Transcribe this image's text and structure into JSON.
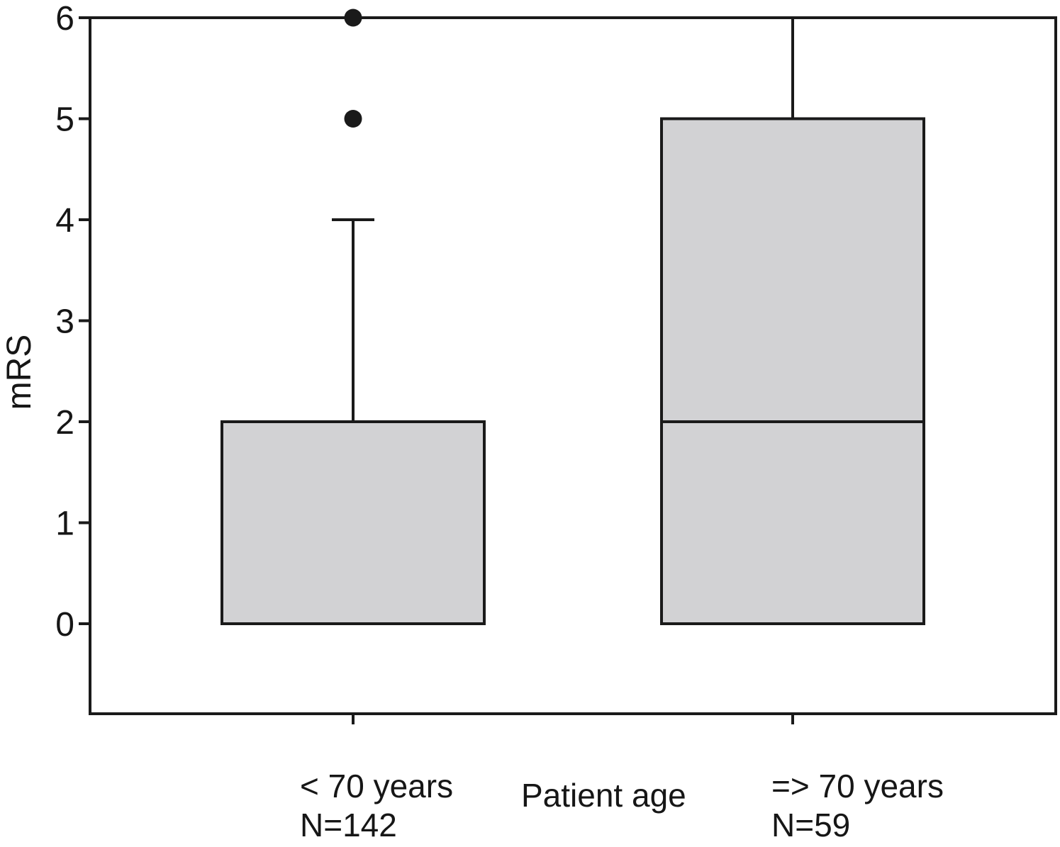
{
  "chart_data": {
    "type": "boxplot",
    "title": "",
    "ylabel": "mRS",
    "xlabel": "Patient age",
    "ylim": [
      0,
      6
    ],
    "yticks": [
      0,
      1,
      2,
      3,
      4,
      5,
      6
    ],
    "grid": false,
    "box_orientation": "vertical",
    "categories": [
      {
        "label": "< 70 years",
        "n_label": "N=142",
        "q1": 0,
        "q3": 2,
        "median": null,
        "median_visible": false,
        "whisker_low": 0,
        "whisker_high": 4,
        "whisker_high_cap": true,
        "outliers": [
          5,
          6
        ]
      },
      {
        "label": "=> 70 years",
        "n_label": "N=59",
        "q1": 0,
        "q3": 5,
        "median": 2,
        "median_visible": true,
        "whisker_low": 0,
        "whisker_high": 6,
        "whisker_high_cap": false,
        "outliers": []
      }
    ],
    "colors": {
      "box_fill": "#d2d2d4",
      "line": "#1a1a1a",
      "text": "#161616",
      "outlier_fill": "#1a1a1a",
      "background": "#ffffff"
    }
  }
}
